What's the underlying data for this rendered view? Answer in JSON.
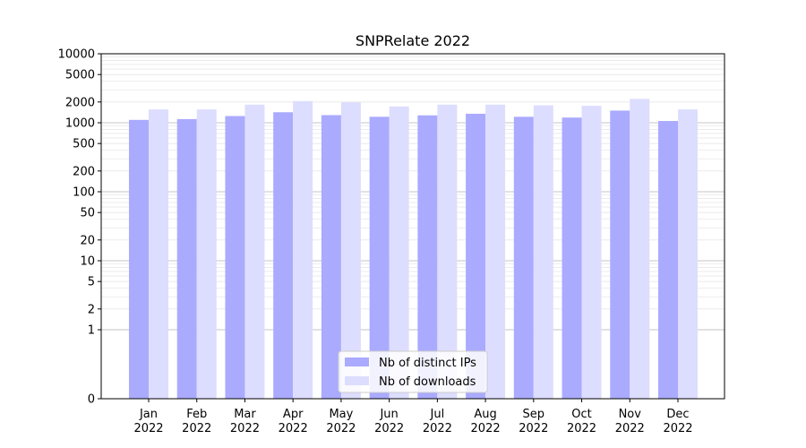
{
  "chart_data": {
    "type": "bar",
    "title": "SNPRelate 2022",
    "xlabel": "",
    "ylabel": "",
    "yscale": "symlog",
    "ylim": [
      0,
      10000
    ],
    "yticks": [
      0,
      1,
      2,
      5,
      10,
      20,
      50,
      100,
      200,
      500,
      1000,
      2000,
      5000,
      10000
    ],
    "grid": true,
    "legend_position": "bottom-center",
    "categories": [
      [
        "Jan",
        "2022"
      ],
      [
        "Feb",
        "2022"
      ],
      [
        "Mar",
        "2022"
      ],
      [
        "Apr",
        "2022"
      ],
      [
        "May",
        "2022"
      ],
      [
        "Jun",
        "2022"
      ],
      [
        "Jul",
        "2022"
      ],
      [
        "Aug",
        "2022"
      ],
      [
        "Sep",
        "2022"
      ],
      [
        "Oct",
        "2022"
      ],
      [
        "Nov",
        "2022"
      ],
      [
        "Dec",
        "2022"
      ]
    ],
    "series": [
      {
        "name": "Nb of distinct IPs",
        "color": "#aaaaff",
        "values": [
          1100,
          1130,
          1250,
          1420,
          1290,
          1220,
          1280,
          1350,
          1220,
          1190,
          1500,
          1060
        ]
      },
      {
        "name": "Nb of downloads",
        "color": "#ddddff",
        "values": [
          1560,
          1560,
          1830,
          2060,
          1980,
          1720,
          1830,
          1830,
          1790,
          1760,
          2220,
          1560
        ]
      }
    ]
  }
}
